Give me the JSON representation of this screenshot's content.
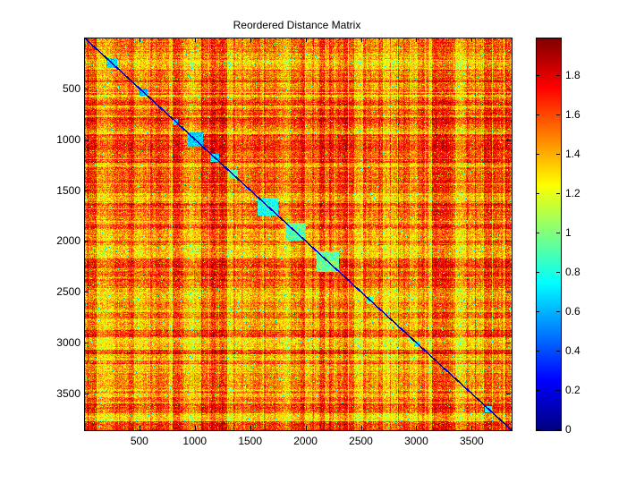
{
  "chart_data": {
    "type": "heatmap",
    "title": "Reordered Distance Matrix",
    "xlabel": "",
    "ylabel": "",
    "n": 3860,
    "xlim": [
      0.5,
      3860.5
    ],
    "ylim": [
      0.5,
      3860.5
    ],
    "x_ticks": [
      500,
      1000,
      1500,
      2000,
      2500,
      3000,
      3500
    ],
    "x_tick_labels": [
      "500",
      "1000",
      "1500",
      "2000",
      "2500",
      "3000",
      "3500"
    ],
    "y_ticks": [
      500,
      1000,
      1500,
      2000,
      2500,
      3000,
      3500
    ],
    "y_tick_labels": [
      "500",
      "1000",
      "1500",
      "2000",
      "2500",
      "3000",
      "3500"
    ],
    "colormap": "jet",
    "clim": [
      0,
      1.99
    ],
    "colorbar_ticks": [
      0,
      0.2,
      0.4,
      0.6,
      0.8,
      1,
      1.2,
      1.4,
      1.6,
      1.8
    ],
    "colorbar_tick_labels": [
      "0",
      "0.2",
      "0.4",
      "0.6",
      "0.8",
      "1",
      "1.2",
      "1.4",
      "1.6",
      "1.8"
    ],
    "background_mean_distance": 1.5,
    "diagonal_value": 0,
    "low_distance_clusters": [
      {
        "start": 200,
        "end": 300,
        "value": 0.65
      },
      {
        "start": 500,
        "end": 570,
        "value": 0.6
      },
      {
        "start": 800,
        "end": 850,
        "value": 0.7
      },
      {
        "start": 930,
        "end": 1070,
        "value": 0.65
      },
      {
        "start": 1140,
        "end": 1220,
        "value": 0.7
      },
      {
        "start": 1300,
        "end": 1390,
        "value": 0.9
      },
      {
        "start": 1570,
        "end": 1750,
        "value": 0.8
      },
      {
        "start": 1820,
        "end": 2000,
        "value": 0.9
      },
      {
        "start": 2100,
        "end": 2300,
        "value": 0.95
      },
      {
        "start": 2550,
        "end": 2620,
        "value": 0.9
      },
      {
        "start": 2980,
        "end": 3030,
        "value": 0.8
      },
      {
        "start": 3620,
        "end": 3680,
        "value": 0.8
      }
    ]
  }
}
